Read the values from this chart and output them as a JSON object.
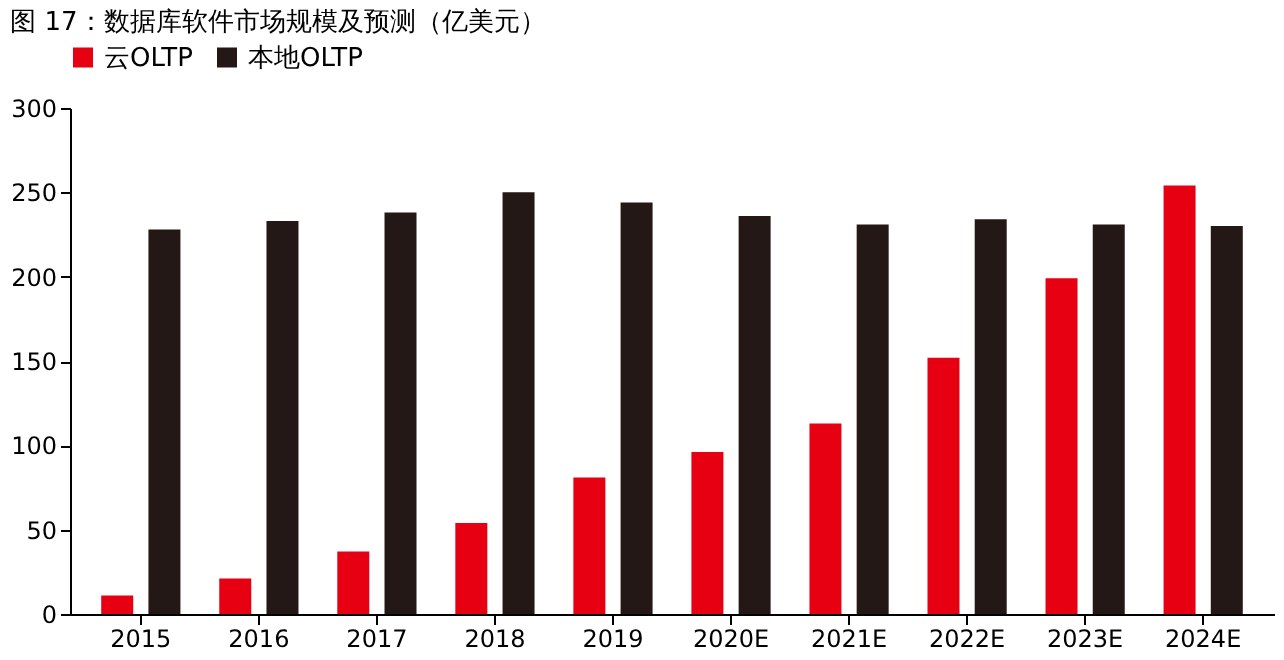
{
  "chart_data": {
    "type": "bar",
    "title": "图 17：数据库软件市场规模及预测（亿美元）",
    "categories": [
      "2015",
      "2016",
      "2017",
      "2018",
      "2019",
      "2020E",
      "2021E",
      "2022E",
      "2023E",
      "2024E"
    ],
    "series": [
      {
        "name": "云OLTP",
        "color": "#e60012",
        "values": [
          11,
          21,
          37,
          54,
          81,
          96,
          113,
          152,
          199,
          254
        ]
      },
      {
        "name": "本地OLTP",
        "color": "#231815",
        "values": [
          228,
          233,
          238,
          250,
          244,
          236,
          231,
          234,
          231,
          230
        ]
      }
    ],
    "ylim": [
      0,
      300
    ],
    "yticks": [
      0,
      50,
      100,
      150,
      200,
      250,
      300
    ],
    "grid": false,
    "legend": "top"
  }
}
